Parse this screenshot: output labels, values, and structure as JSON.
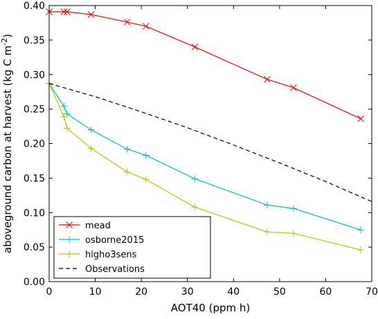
{
  "chart_data": {
    "type": "line",
    "title": "",
    "xlabel": "AOT40 (ppm h)",
    "ylabel": "aboveground carbon at harvest  (kg C m",
    "ylabel_sup": "-2",
    "ylabel_close": ")",
    "xlim": [
      0,
      70
    ],
    "ylim": [
      0.0,
      0.4
    ],
    "xticks": [
      "0",
      "10",
      "20",
      "30",
      "40",
      "50",
      "60",
      "70"
    ],
    "yticks": [
      "0.00",
      "0.05",
      "0.10",
      "0.15",
      "0.20",
      "0.25",
      "0.30",
      "0.35",
      "0.40"
    ],
    "grid": false,
    "legend_position": "lower-left",
    "series": [
      {
        "name": "mead",
        "color": "#ff0000",
        "marker": "x",
        "x": [
          0,
          3.2,
          3.9,
          9.1,
          16.9,
          21.0,
          31.6,
          47.3,
          53.0,
          67.6
        ],
        "y": [
          0.391,
          0.391,
          0.391,
          0.387,
          0.376,
          0.37,
          0.34,
          0.293,
          0.281,
          0.236
        ]
      },
      {
        "name": "osborne2015",
        "color": "#00bfbf",
        "marker": "+",
        "x": [
          0,
          3.2,
          3.9,
          9.1,
          16.9,
          21.0,
          31.6,
          47.3,
          53.0,
          67.6
        ],
        "y": [
          0.287,
          0.254,
          0.243,
          0.22,
          0.192,
          0.183,
          0.149,
          0.111,
          0.106,
          0.075
        ]
      },
      {
        "name": "higho3sens",
        "color": "#bfbf00",
        "marker": "+",
        "x": [
          0,
          3.2,
          3.9,
          9.1,
          16.9,
          21.0,
          31.6,
          47.3,
          53.0,
          67.6
        ],
        "y": [
          0.287,
          0.239,
          0.222,
          0.193,
          0.159,
          0.148,
          0.108,
          0.072,
          0.07,
          0.046
        ]
      },
      {
        "name": "Observations",
        "color": "#000000",
        "marker": "none",
        "dash": true,
        "x": [
          0,
          10,
          20,
          30,
          40,
          50,
          60,
          70
        ],
        "y": [
          0.287,
          0.268,
          0.246,
          0.223,
          0.198,
          0.172,
          0.145,
          0.116
        ]
      }
    ]
  }
}
